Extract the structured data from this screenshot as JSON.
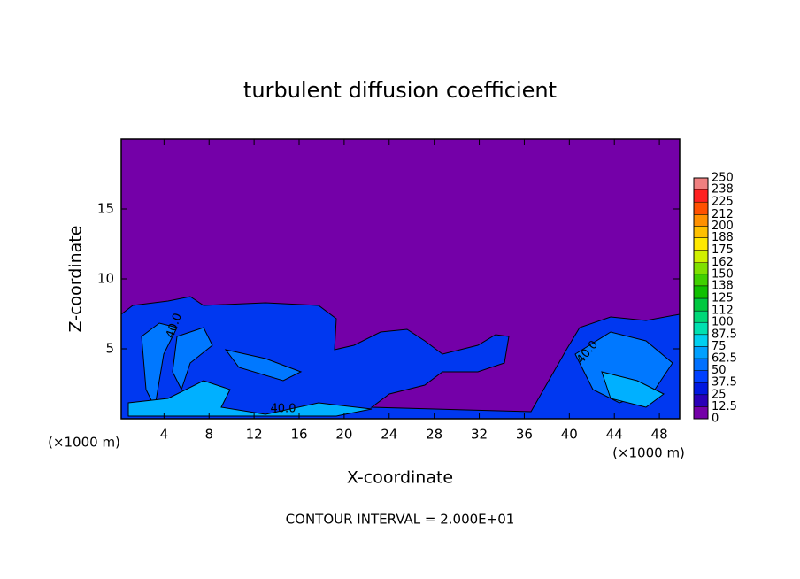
{
  "chart_data": {
    "type": "contour",
    "title": "turbulent diffusion coefficient",
    "x_label": "X-coordinate",
    "y_label": "Z-coordinate",
    "x_unit": "(×1000 m)",
    "y_unit": "(×1000 m)",
    "xlim": [
      0.2,
      49.8
    ],
    "ylim": [
      0,
      20
    ],
    "xticks": [
      4,
      8,
      12,
      16,
      20,
      24,
      28,
      32,
      36,
      40,
      44,
      48
    ],
    "yticks": [
      5,
      10,
      15
    ],
    "contour_labels": [
      "40.0",
      "40.0",
      "40.0"
    ],
    "footnote": "CONTOUR INTERVAL = 2.000E+01",
    "colorbar": {
      "levels": [
        0,
        12.5,
        25,
        37.5,
        50,
        62.5,
        75,
        87.5,
        100,
        112,
        125,
        138,
        150,
        162,
        175,
        188,
        200,
        212,
        225,
        238,
        250
      ],
      "colors": [
        "#7400a8",
        "#2a00b8",
        "#0018e0",
        "#0040ff",
        "#0070ff",
        "#00a0ff",
        "#00d0f0",
        "#00e0b0",
        "#00d878",
        "#00c840",
        "#10c000",
        "#40d000",
        "#80e000",
        "#d0f000",
        "#ffe800",
        "#ffc000",
        "#ff9000",
        "#ff5000",
        "#ff2020",
        "#f08080"
      ]
    }
  }
}
